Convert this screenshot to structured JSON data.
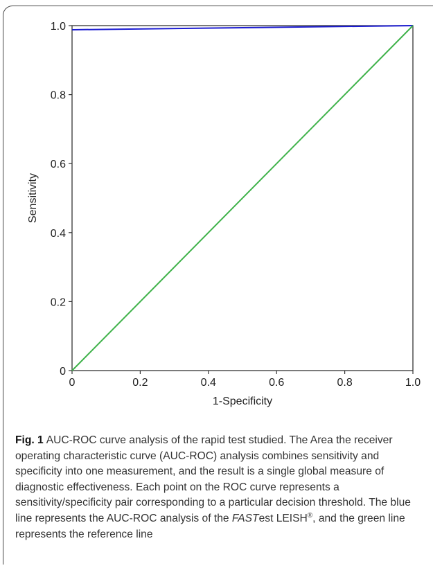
{
  "chart_data": {
    "type": "line",
    "title": "",
    "xlabel": "1-Specificity",
    "ylabel": "Sensitivity",
    "xlim": [
      0,
      1
    ],
    "ylim": [
      0,
      1
    ],
    "x_ticks": [
      "0",
      "0.2",
      "0.4",
      "0.6",
      "0.8",
      "1.0"
    ],
    "y_ticks": [
      "0",
      "0.2",
      "0.4",
      "0.6",
      "0.8",
      "1.0"
    ],
    "grid": false,
    "legend": "none",
    "series": [
      {
        "color": "#1c1cd2",
        "points": [
          [
            0,
            0.988
          ],
          [
            1,
            1
          ]
        ]
      },
      {
        "color": "#3fb24a",
        "points": [
          [
            0,
            0
          ],
          [
            1,
            1
          ]
        ]
      }
    ]
  },
  "caption": {
    "label": "Fig. 1",
    "text_part1": "AUC-ROC curve analysis of the rapid test studied. The Area the receiver operating characteristic curve (AUC-ROC) analysis combines sensitivity and specificity into one measurement, and the result is a single global measure of diagnostic effectiveness. Each point on the ROC curve represents a sensitivity/specificity pair corresponding to a particular decision threshold. The blue line represents the AUC-ROC analysis of the ",
    "italic": "FAST",
    "text_part2": "est LEISH",
    "superscript": "®",
    "text_part3": ", and the green line represents the reference line"
  }
}
